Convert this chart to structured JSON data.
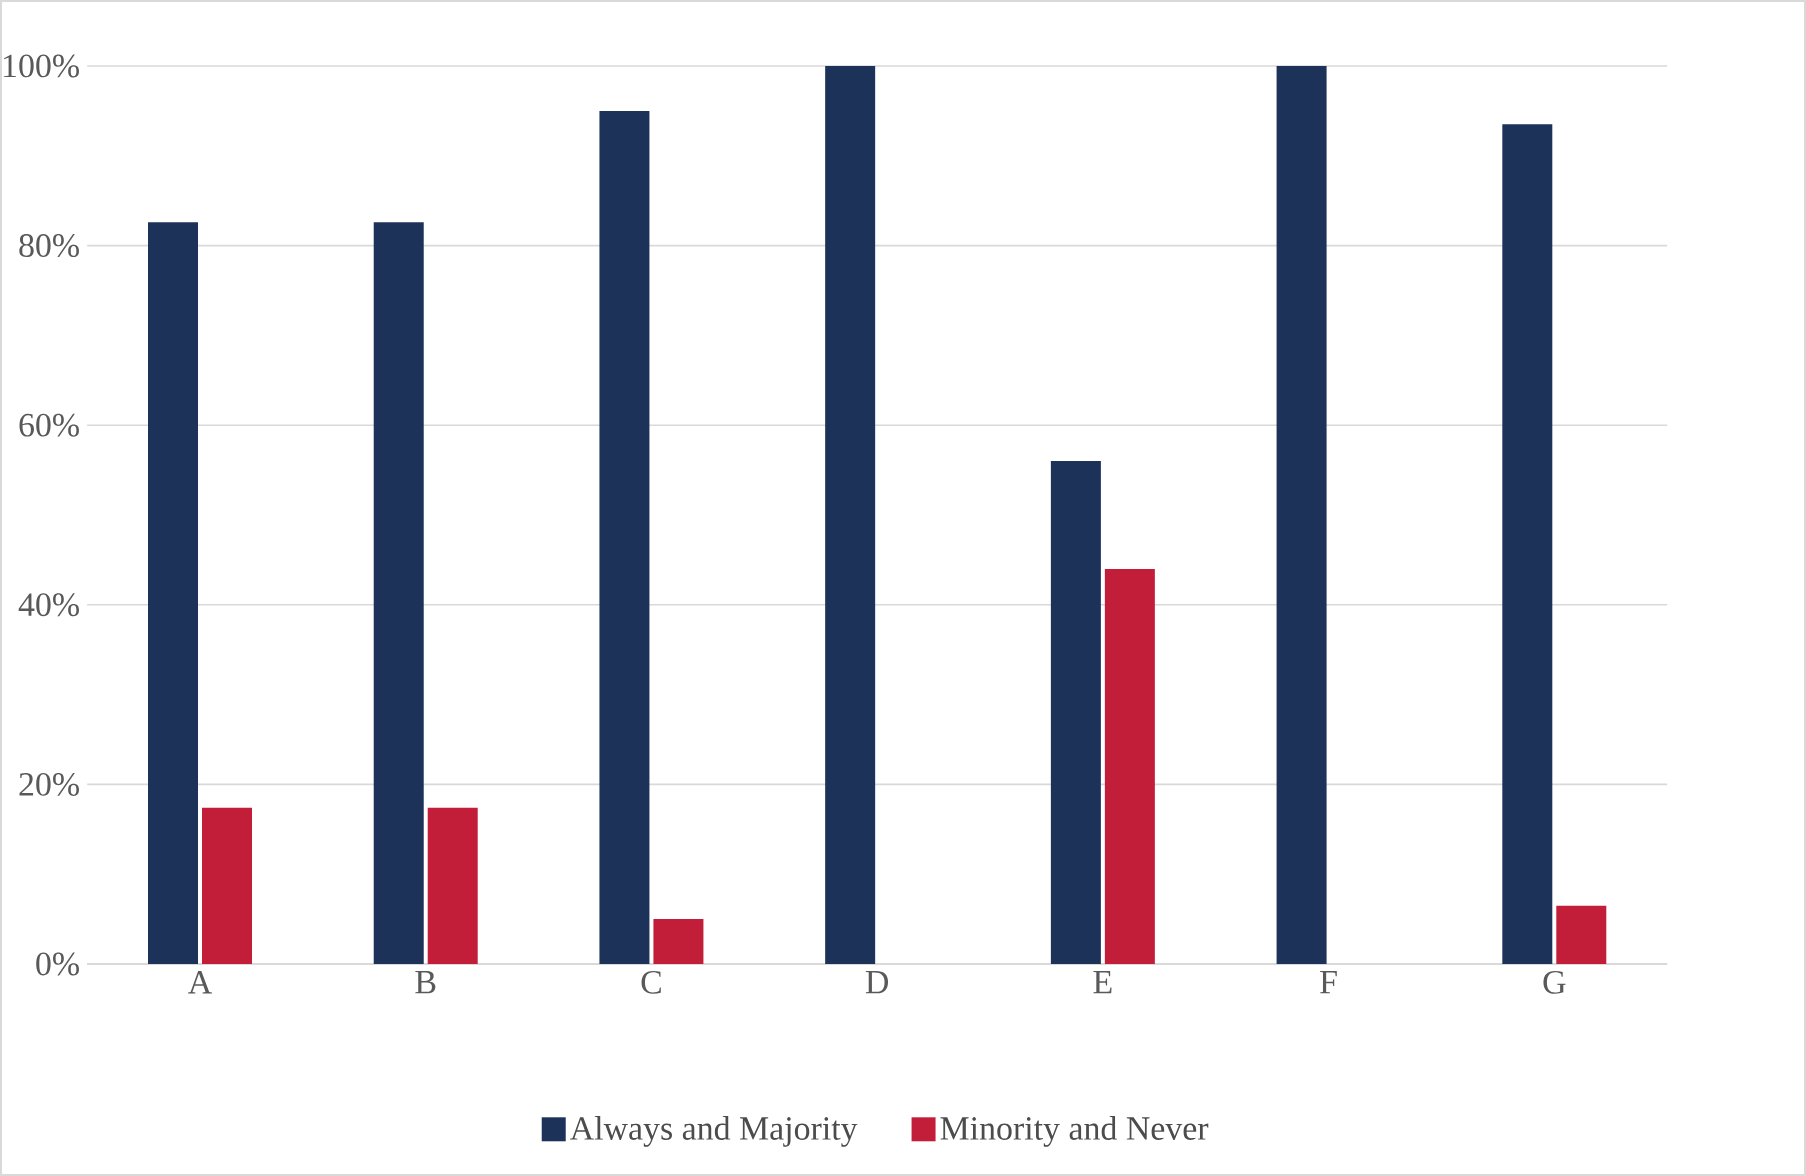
{
  "chart_data": {
    "type": "bar",
    "categories": [
      "A",
      "B",
      "C",
      "D",
      "E",
      "F",
      "G"
    ],
    "series": [
      {
        "name": "Always and Majority",
        "color": "#1c3258",
        "values": [
          82.6,
          82.6,
          95,
          100,
          56,
          100,
          93.5
        ]
      },
      {
        "name": "Minority and Never",
        "color": "#c21e3a",
        "values": [
          17.4,
          17.4,
          5,
          0,
          44,
          0,
          6.5
        ]
      }
    ],
    "ylim": [
      0,
      100
    ],
    "yticks": [
      {
        "value": 0,
        "label": "0%"
      },
      {
        "value": 20,
        "label": "20%"
      },
      {
        "value": 40,
        "label": "40%"
      },
      {
        "value": 60,
        "label": "60%"
      },
      {
        "value": 80,
        "label": "80%"
      },
      {
        "value": 100,
        "label": "100%"
      }
    ],
    "grid": "y",
    "legend": "bottom"
  }
}
